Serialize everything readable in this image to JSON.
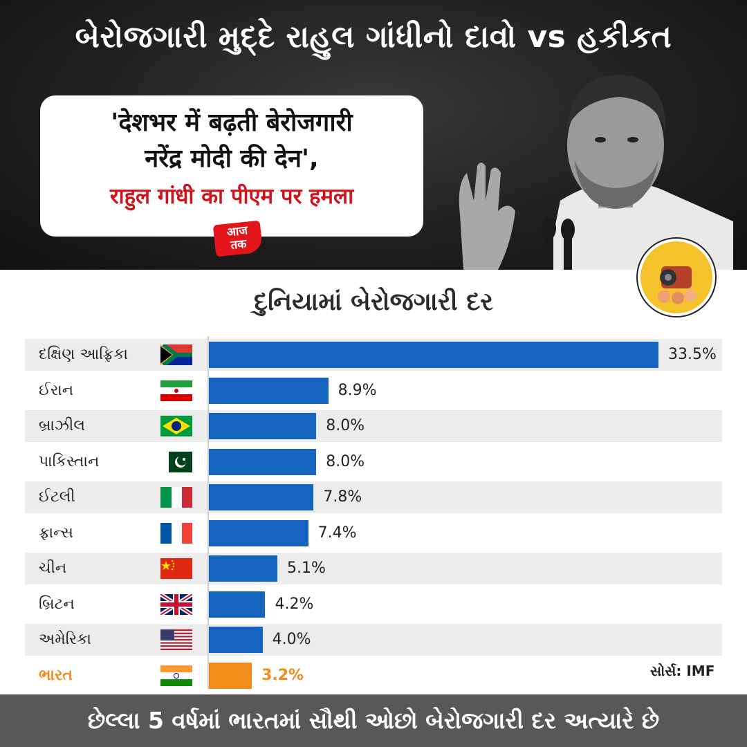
{
  "header": {
    "headline": "બેરોજગારી મુદ્દે રાહુલ ગાંધીનો દાવો vs હકીકત",
    "quote_line1": "'देशभर में बढ़ती बेरोजगारी",
    "quote_line2": "नरेंद्र मोदी की देन',",
    "quote_sub": "राहुल गांधी का पीएम पर हमला",
    "channel_logo": "आज तक"
  },
  "colors": {
    "bar": "#1565c0",
    "highlight": "#f28c1b",
    "quote_red": "#d0121b",
    "footer_bg": "#585858"
  },
  "chart_data": {
    "type": "bar",
    "orientation": "horizontal",
    "title": "દુનિયામાં બેરોજગારી દર",
    "categories": [
      "દક્ષિણ આફ્રિકા",
      "ઈરાન",
      "બ્રાઝીલ",
      "પાકિસ્તાન",
      "ઈટલી",
      "ફ્રાન્સ",
      "ચીન",
      "બ્રિટન",
      "અમેરિકા",
      "ભારત"
    ],
    "flags": [
      "south-africa-flag-icon",
      "iran-flag-icon",
      "brazil-flag-icon",
      "pakistan-flag-icon",
      "italy-flag-icon",
      "france-flag-icon",
      "china-flag-icon",
      "uk-flag-icon",
      "usa-flag-icon",
      "india-flag-icon"
    ],
    "values": [
      33.5,
      8.9,
      8.0,
      8.0,
      7.8,
      7.4,
      5.1,
      4.2,
      4.0,
      3.2
    ],
    "value_labels": [
      "33.5%",
      "8.9%",
      "8.0%",
      "8.0%",
      "7.8%",
      "7.4%",
      "5.1%",
      "4.2%",
      "4.0%",
      "3.2%"
    ],
    "highlight_category": "ભારત",
    "xlim": [
      0,
      33.5
    ],
    "grid": false,
    "legend": "none"
  },
  "source": "સોર્સ: IMF",
  "footer": "છેલ્લા 5 વર્ષમાં ભારતમાં સૌથી ઓછો બેરોજગારી દર અત્યારે છે"
}
